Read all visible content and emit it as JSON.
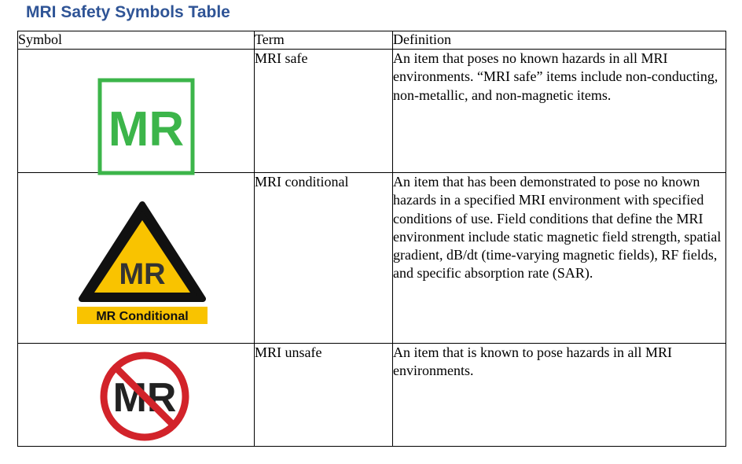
{
  "title": "MRI Safety Symbols Table",
  "table": {
    "headers": {
      "symbol": "Symbol",
      "term": "Term",
      "definition": "Definition"
    },
    "rows": [
      {
        "symbol_icon": "mr-safe-icon",
        "symbol_text": "MR",
        "term": "MRI safe",
        "definition": "An item that poses no known hazards in all MRI environments. “MRI safe” items include non-conducting, non-metallic, and non-magnetic items."
      },
      {
        "symbol_icon": "mr-conditional-icon",
        "symbol_text": "MR",
        "symbol_label": "MR Conditional",
        "term": "MRI conditional",
        "definition": "An item that has been demonstrated to pose no known hazards in a specified MRI environment with specified conditions of use. Field conditions that define the MRI environment include static magnetic field strength, spatial gradient, dB/dt (time-varying magnetic fields), RF fields, and specific absorption rate (SAR)."
      },
      {
        "symbol_icon": "mr-unsafe-icon",
        "symbol_text": "MR",
        "term": "MRI unsafe",
        "definition": "An item that is known to pose hazards in all MRI environments."
      }
    ]
  },
  "colors": {
    "title": "#2f5496",
    "safe_green": "#3cb54a",
    "conditional_yellow": "#f9c300",
    "unsafe_red": "#d2232a"
  }
}
